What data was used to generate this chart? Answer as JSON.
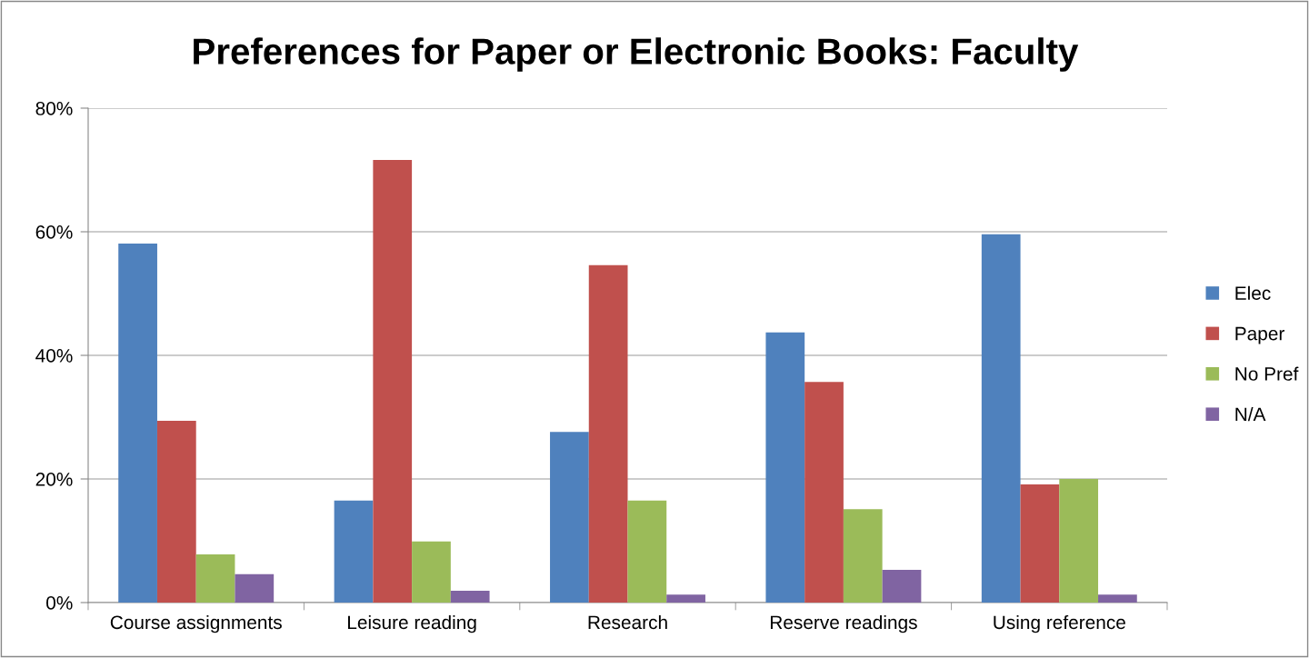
{
  "chart_data": {
    "type": "bar",
    "title": "Preferences for Paper or Electronic Books: Faculty",
    "categories": [
      "Course assignments",
      "Leisure reading",
      "Research",
      "Reserve readings",
      "Using reference"
    ],
    "series": [
      {
        "name": "Elec",
        "color": "#4f81bd",
        "values": [
          58.1,
          16.5,
          27.6,
          43.7,
          59.6
        ]
      },
      {
        "name": "Paper",
        "color": "#c0504d",
        "values": [
          29.4,
          71.6,
          54.6,
          35.7,
          19.1
        ]
      },
      {
        "name": "No Pref",
        "color": "#9bbb59",
        "values": [
          7.8,
          9.9,
          16.5,
          15.1,
          20.0
        ]
      },
      {
        "name": "N/A",
        "color": "#8064a2",
        "values": [
          4.6,
          1.9,
          1.3,
          5.3,
          1.3
        ]
      }
    ],
    "ylim": [
      0,
      80
    ],
    "yticks": [
      {
        "value": 0,
        "label": "0%"
      },
      {
        "value": 20,
        "label": "20%"
      },
      {
        "value": 40,
        "label": "40%"
      },
      {
        "value": 60,
        "label": "60%"
      },
      {
        "value": 80,
        "label": "80%"
      }
    ],
    "grid": "y",
    "legend": "right"
  }
}
